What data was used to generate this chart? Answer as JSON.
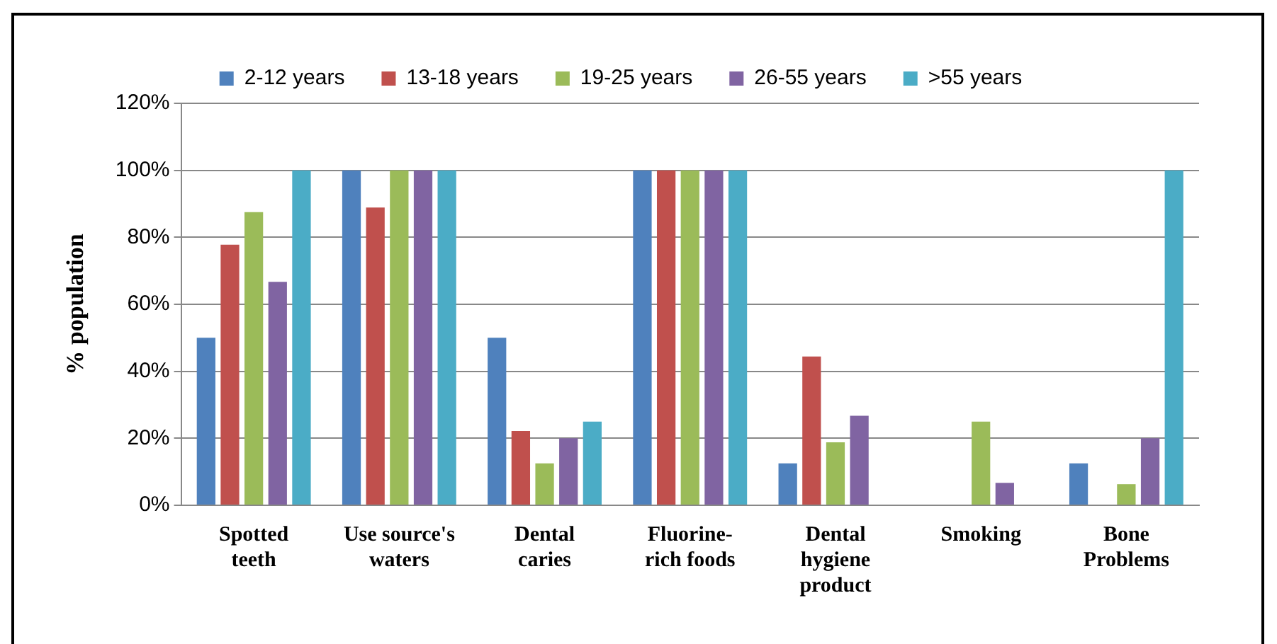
{
  "chart_data": {
    "type": "bar",
    "ylabel": "% population",
    "categories": [
      "Spotted teeth",
      "Use source's waters",
      "Dental caries",
      "Fluorine-rich foods",
      "Dental hygiene product",
      "Smoking",
      "Bone Problems"
    ],
    "series": [
      {
        "name": "2-12 years",
        "color": "#4f81bd",
        "values": [
          50,
          100,
          50,
          100,
          12.5,
          0,
          12.5
        ]
      },
      {
        "name": "13-18 years",
        "color": "#c0504d",
        "values": [
          77.8,
          88.9,
          22.2,
          100,
          44.4,
          0,
          0
        ]
      },
      {
        "name": "19-25 years",
        "color": "#9bbb59",
        "values": [
          87.5,
          100,
          12.5,
          100,
          18.8,
          25,
          6.3
        ]
      },
      {
        "name": "26-55 years",
        "color": "#8064a2",
        "values": [
          66.7,
          100,
          20,
          100,
          26.7,
          6.7,
          20
        ]
      },
      {
        "name": ">55 years",
        "color": "#4bacc6",
        "values": [
          100,
          100,
          25,
          100,
          0,
          0,
          100
        ]
      }
    ],
    "ylim": [
      0,
      120
    ],
    "yticks": [
      {
        "value": 0,
        "label": "0%"
      },
      {
        "value": 20,
        "label": "20%"
      },
      {
        "value": 40,
        "label": "40%"
      },
      {
        "value": 60,
        "label": "60%"
      },
      {
        "value": 80,
        "label": "80%"
      },
      {
        "value": 100,
        "label": "100%"
      },
      {
        "value": 120,
        "label": "120%"
      }
    ],
    "grid": "y",
    "legend": "top"
  }
}
